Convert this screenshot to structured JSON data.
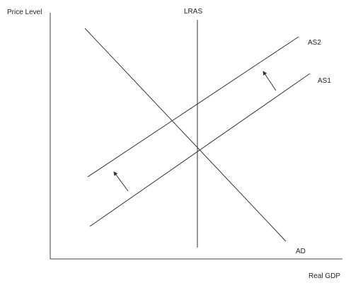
{
  "diagram": {
    "axes": {
      "y_label": "Price Level",
      "x_label": "Real GDP"
    },
    "curves": {
      "lras": "LRAS",
      "as2": "AS2",
      "as1": "AS1",
      "ad": "AD"
    },
    "shift": {
      "from": "AS1",
      "to": "AS2",
      "direction": "up-left"
    },
    "colors": {
      "line": "#333333",
      "background": "#ffffff"
    }
  }
}
